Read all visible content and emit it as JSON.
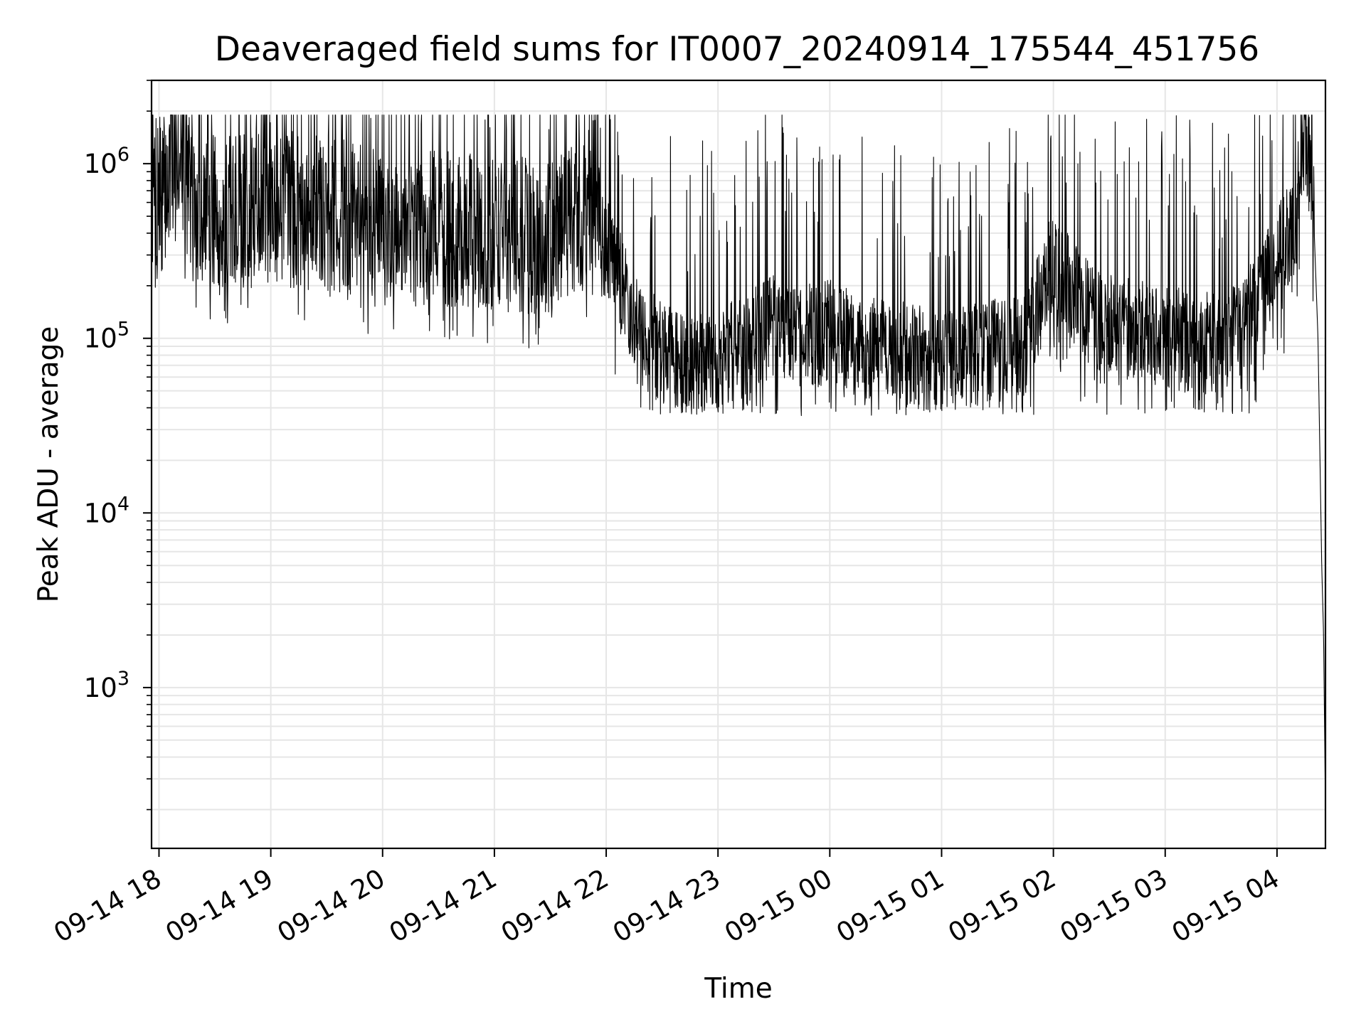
{
  "chart_data": {
    "type": "line",
    "title": "Deaveraged field sums for IT0007_20240914_175544_451756",
    "xlabel": "Time",
    "ylabel": "Peak ADU - average",
    "yscale": "log",
    "grid": true,
    "line_color": "#000000",
    "grid_color": "#e6e6e6",
    "xlim": [
      "2024-09-14 17:56",
      "2024-09-15 04:26"
    ],
    "ylim": [
      120,
      3000000
    ],
    "x_tick_values": [
      "2024-09-14 18:00",
      "2024-09-14 19:00",
      "2024-09-14 20:00",
      "2024-09-14 21:00",
      "2024-09-14 22:00",
      "2024-09-14 23:00",
      "2024-09-15 00:00",
      "2024-09-15 01:00",
      "2024-09-15 02:00",
      "2024-09-15 03:00",
      "2024-09-15 04:00"
    ],
    "x_tick_labels": [
      "09-14 18",
      "09-14 19",
      "09-14 20",
      "09-14 21",
      "09-14 22",
      "09-14 23",
      "09-15 00",
      "09-15 01",
      "09-15 02",
      "09-15 03",
      "09-15 04"
    ],
    "y_ticks": [
      {
        "value": 1000,
        "base": "10",
        "exp": "3"
      },
      {
        "value": 10000,
        "base": "10",
        "exp": "4"
      },
      {
        "value": 100000,
        "base": "10",
        "exp": "5"
      },
      {
        "value": 1000000,
        "base": "10",
        "exp": "6"
      }
    ],
    "series": [
      {
        "x": [
          "2024-09-14 17:56",
          "2024-09-14 18:00",
          "2024-09-14 18:04",
          "2024-09-14 18:06",
          "2024-09-14 18:10",
          "2024-09-14 18:20",
          "2024-09-14 18:30",
          "2024-09-14 18:40",
          "2024-09-14 18:50",
          "2024-09-14 19:00",
          "2024-09-14 19:10",
          "2024-09-14 19:30",
          "2024-09-14 20:00",
          "2024-09-14 20:30",
          "2024-09-14 21:00",
          "2024-09-14 21:30",
          "2024-09-14 21:50",
          "2024-09-14 21:55",
          "2024-09-14 22:00",
          "2024-09-14 22:15",
          "2024-09-14 22:30",
          "2024-09-14 22:45",
          "2024-09-14 23:00",
          "2024-09-14 23:15",
          "2024-09-14 23:30",
          "2024-09-14 23:45",
          "2024-09-15 00:00",
          "2024-09-15 00:15",
          "2024-09-15 00:30",
          "2024-09-15 00:45",
          "2024-09-15 01:00",
          "2024-09-15 01:15",
          "2024-09-15 01:30",
          "2024-09-15 01:45",
          "2024-09-15 01:55",
          "2024-09-15 02:00",
          "2024-09-15 02:15",
          "2024-09-15 02:30",
          "2024-09-15 02:45",
          "2024-09-15 03:00",
          "2024-09-15 03:15",
          "2024-09-15 03:30",
          "2024-09-15 03:45",
          "2024-09-15 04:00",
          "2024-09-15 04:10",
          "2024-09-15 04:13",
          "2024-09-15 04:16",
          "2024-09-15 04:19",
          "2024-09-15 04:22",
          "2024-09-15 04:24",
          "2024-09-15 04:25",
          "2024-09-15 04:26"
        ],
        "y": [
          700000,
          650000,
          750000,
          1000000,
          1400000,
          500000,
          550000,
          500000,
          600000,
          650000,
          550000,
          520000,
          450000,
          420000,
          400000,
          380000,
          600000,
          900000,
          350000,
          120000,
          80000,
          65000,
          75000,
          90000,
          120000,
          100000,
          110000,
          90000,
          85000,
          80000,
          70000,
          80000,
          85000,
          90000,
          200000,
          300000,
          150000,
          120000,
          110000,
          100000,
          95000,
          90000,
          130000,
          300000,
          450000,
          1300000,
          1200000,
          800000,
          100000,
          5000,
          2000,
          200
        ]
      }
    ]
  }
}
